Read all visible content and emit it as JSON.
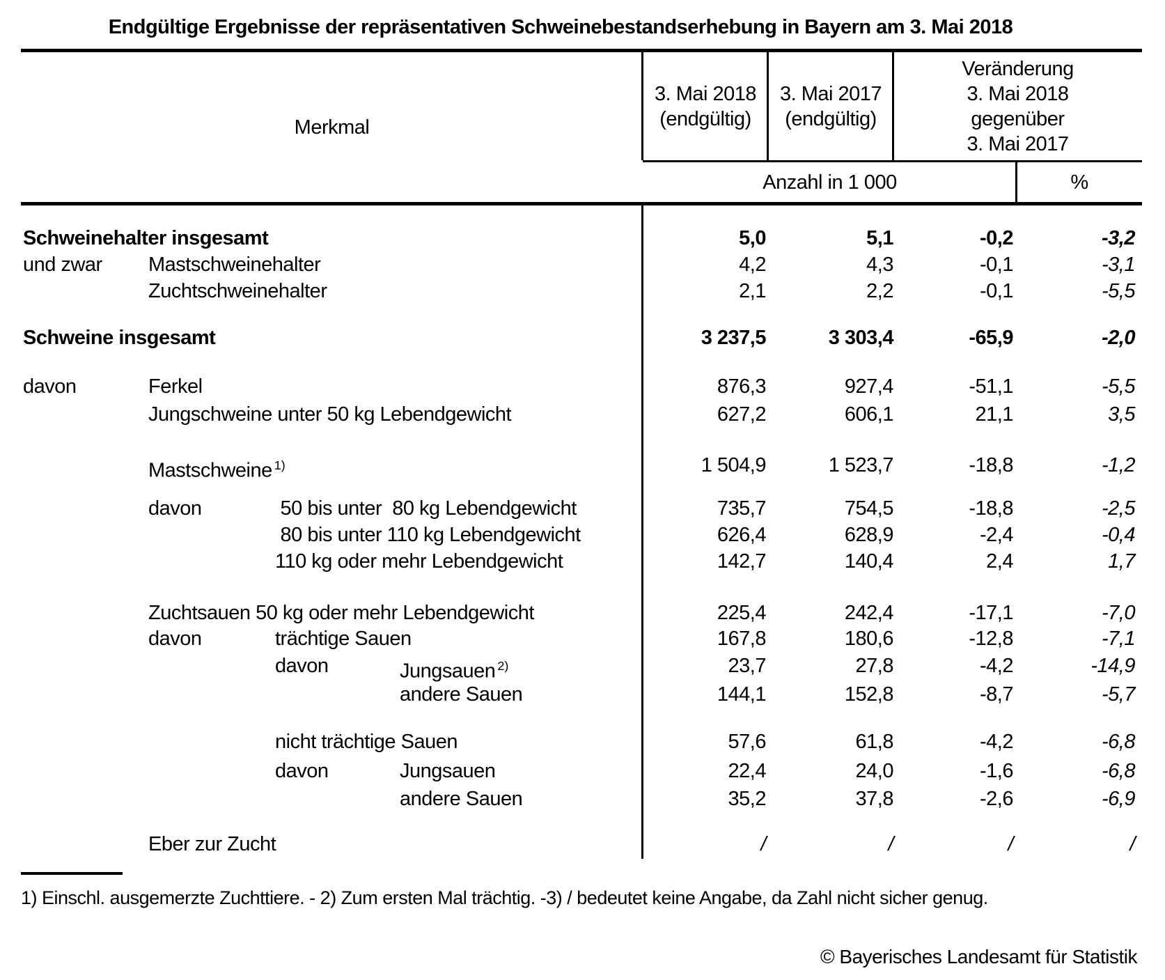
{
  "title": "Endgültige Ergebnisse der repräsentativen Schweinebestandserhebung in Bayern am 3. Mai 2018",
  "header": {
    "merkmal": "Merkmal",
    "col_2018": "3. Mai 2018\n(endgültig)",
    "col_2017": "3. Mai 2017\n(endgültig)",
    "col_change": "Veränderung\n3. Mai 2018\ngegenüber\n3. Mai 2017",
    "unit_count": "Anzahl in 1 000",
    "unit_pct": "%"
  },
  "rows": [
    {
      "prefix": "",
      "prefix_indent": 0,
      "label": "Schweinehalter insgesamt",
      "sup": "",
      "indent": 0,
      "bold": true,
      "slash": false,
      "values": [
        "5,0",
        "5,1",
        "-0,2",
        "-3,2"
      ]
    },
    {
      "prefix": "und zwar",
      "prefix_indent": 0,
      "label": "Mastschweinehalter",
      "sup": "",
      "indent": 1,
      "bold": false,
      "slash": false,
      "values": [
        "4,2",
        "4,3",
        "-0,1",
        "-3,1"
      ]
    },
    {
      "prefix": "",
      "prefix_indent": 0,
      "label": "Zuchtschweinehalter",
      "sup": "",
      "indent": 1,
      "bold": false,
      "slash": false,
      "values": [
        "2,1",
        "2,2",
        "-0,1",
        "-5,5"
      ]
    },
    {
      "prefix": "",
      "prefix_indent": 0,
      "label": "Schweine insgesamt",
      "sup": "",
      "indent": 0,
      "bold": true,
      "slash": false,
      "values": [
        "3 237,5",
        "3 303,4",
        "-65,9",
        "-2,0"
      ]
    },
    {
      "prefix": "davon",
      "prefix_indent": 0,
      "label": "Ferkel",
      "sup": "",
      "indent": 1,
      "bold": false,
      "slash": false,
      "values": [
        "876,3",
        "927,4",
        "-51,1",
        "-5,5"
      ]
    },
    {
      "prefix": "",
      "prefix_indent": 0,
      "label": "Jungschweine unter 50 kg Lebendgewicht",
      "sup": "",
      "indent": 1,
      "bold": false,
      "slash": false,
      "values": [
        "627,2",
        "606,1",
        "21,1",
        "3,5"
      ]
    },
    {
      "prefix": "",
      "prefix_indent": 0,
      "label": "Mastschweine",
      "sup": "1)",
      "indent": 1,
      "bold": false,
      "slash": false,
      "values": [
        "1 504,9",
        "1 523,7",
        "-18,8",
        "-1,2"
      ]
    },
    {
      "prefix": "davon",
      "prefix_indent": 1,
      "label": " 50 bis unter  80 kg Lebendgewicht",
      "sup": "",
      "indent": 2,
      "bold": false,
      "slash": false,
      "values": [
        "735,7",
        "754,5",
        "-18,8",
        "-2,5"
      ]
    },
    {
      "prefix": "",
      "prefix_indent": 0,
      "label": " 80 bis unter 110 kg Lebendgewicht",
      "sup": "",
      "indent": 2,
      "bold": false,
      "slash": false,
      "values": [
        "626,4",
        "628,9",
        "-2,4",
        "-0,4"
      ]
    },
    {
      "prefix": "",
      "prefix_indent": 0,
      "label": "110 kg oder mehr Lebendgewicht",
      "sup": "",
      "indent": 2,
      "bold": false,
      "slash": false,
      "values": [
        "142,7",
        "140,4",
        "2,4",
        "1,7"
      ]
    },
    {
      "prefix": "",
      "prefix_indent": 0,
      "label": "Zuchtsauen 50 kg oder mehr Lebendgewicht",
      "sup": "",
      "indent": 1,
      "bold": false,
      "slash": false,
      "values": [
        "225,4",
        "242,4",
        "-17,1",
        "-7,0"
      ]
    },
    {
      "prefix": "davon",
      "prefix_indent": 1,
      "label": "trächtige Sauen",
      "sup": "",
      "indent": 2,
      "bold": false,
      "slash": false,
      "values": [
        "167,8",
        "180,6",
        "-12,8",
        "-7,1"
      ]
    },
    {
      "prefix": "davon",
      "prefix_indent": 2,
      "label": "Jungsauen",
      "sup": "2)",
      "indent": 3,
      "bold": false,
      "slash": false,
      "values": [
        "23,7",
        "27,8",
        "-4,2",
        "-14,9"
      ]
    },
    {
      "prefix": "",
      "prefix_indent": 0,
      "label": "andere Sauen",
      "sup": "",
      "indent": 3,
      "bold": false,
      "slash": false,
      "values": [
        "144,1",
        "152,8",
        "-8,7",
        "-5,7"
      ]
    },
    {
      "prefix": "",
      "prefix_indent": 0,
      "label": "nicht trächtige Sauen",
      "sup": "",
      "indent": 2,
      "bold": false,
      "slash": false,
      "values": [
        "57,6",
        "61,8",
        "-4,2",
        "-6,8"
      ]
    },
    {
      "prefix": "davon",
      "prefix_indent": 2,
      "label": "Jungsauen",
      "sup": "",
      "indent": 3,
      "bold": false,
      "slash": false,
      "values": [
        "22,4",
        "24,0",
        "-1,6",
        "-6,8"
      ]
    },
    {
      "prefix": "",
      "prefix_indent": 0,
      "label": "andere Sauen",
      "sup": "",
      "indent": 3,
      "bold": false,
      "slash": false,
      "values": [
        "35,2",
        "37,8",
        "-2,6",
        "-6,9"
      ]
    },
    {
      "prefix": "",
      "prefix_indent": 0,
      "label": "Eber zur Zucht",
      "sup": "",
      "indent": 1,
      "bold": false,
      "slash": true,
      "values": [
        "/",
        "/",
        "/",
        "/"
      ]
    }
  ],
  "footnote": "1) Einschl. ausgemerzte Zuchttiere. - 2) Zum ersten Mal trächtig. -3) / bedeutet keine Angabe, da Zahl nicht sicher genug.",
  "copyright": "© Bayerisches Landesamt für Statistik"
}
